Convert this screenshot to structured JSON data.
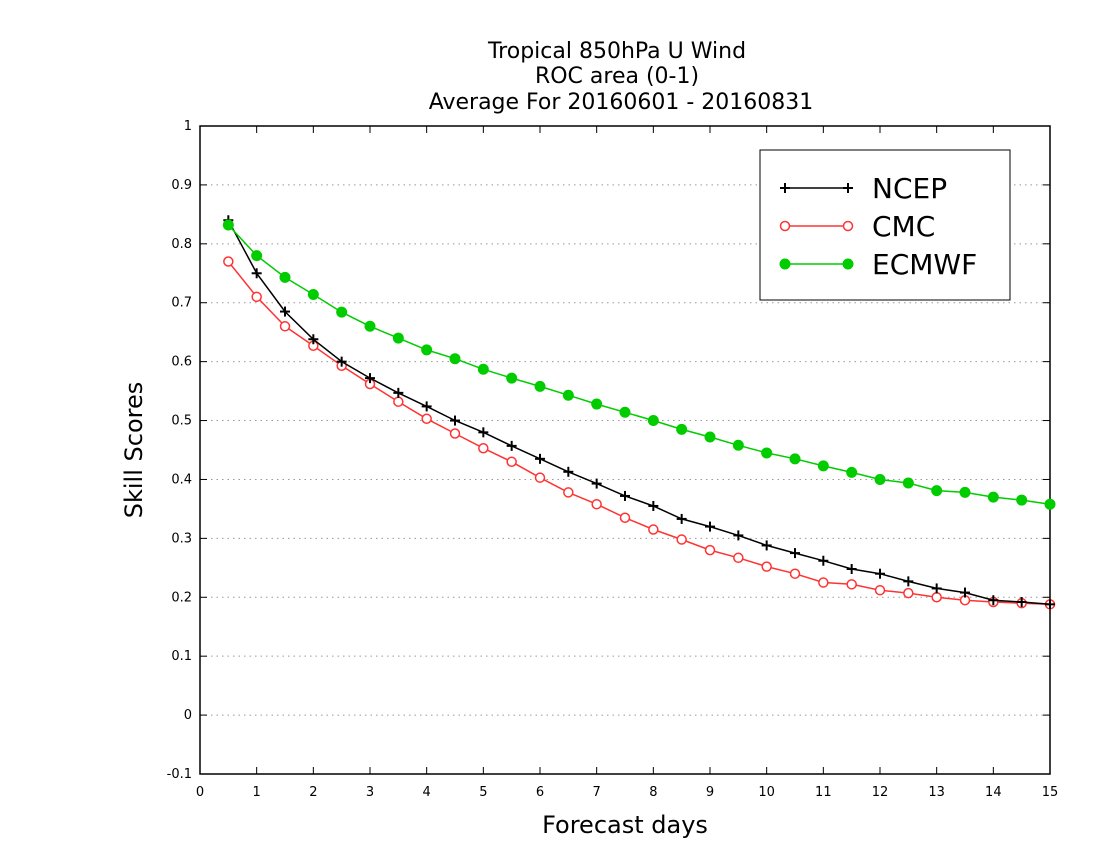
{
  "chart_data": {
    "type": "line",
    "title_lines": [
      "Tropical 850hPa U Wind",
      "ROC area (0-1)",
      "Average For 20160601 - 20160831"
    ],
    "xlabel": "Forecast days",
    "ylabel": "Skill Scores",
    "xlim": [
      0,
      15
    ],
    "ylim": [
      -0.1,
      1
    ],
    "xticks": [
      0,
      1,
      2,
      3,
      4,
      5,
      6,
      7,
      8,
      9,
      10,
      11,
      12,
      13,
      14,
      15
    ],
    "yticks": [
      -0.1,
      0,
      0.1,
      0.2,
      0.3,
      0.4,
      0.5,
      0.6,
      0.7,
      0.8,
      0.9,
      1
    ],
    "ytick_labels": [
      "-0.1",
      "0",
      "0.1",
      "0.2",
      "0.3",
      "0.4",
      "0.5",
      "0.6",
      "0.7",
      "0.8",
      "0.9",
      "1"
    ],
    "grid": "horizontal dotted",
    "legend_position": "top-right",
    "x": [
      0.5,
      1,
      1.5,
      2,
      2.5,
      3,
      3.5,
      4,
      4.5,
      5,
      5.5,
      6,
      6.5,
      7,
      7.5,
      8,
      8.5,
      9,
      9.5,
      10,
      10.5,
      11,
      11.5,
      12,
      12.5,
      13,
      13.5,
      14,
      14.5,
      15
    ],
    "series": [
      {
        "name": "NCEP",
        "color": "#000000",
        "marker": "plus",
        "values": [
          0.84,
          0.75,
          0.685,
          0.638,
          0.6,
          0.572,
          0.547,
          0.524,
          0.5,
          0.48,
          0.457,
          0.435,
          0.413,
          0.393,
          0.372,
          0.355,
          0.333,
          0.32,
          0.305,
          0.288,
          0.275,
          0.262,
          0.248,
          0.24,
          0.227,
          0.215,
          0.208,
          0.195,
          0.192,
          0.188
        ]
      },
      {
        "name": "CMC",
        "color": "#ff3333",
        "marker": "open-circle",
        "values": [
          0.77,
          0.71,
          0.66,
          0.627,
          0.593,
          0.562,
          0.532,
          0.503,
          0.478,
          0.453,
          0.43,
          0.403,
          0.378,
          0.358,
          0.335,
          0.315,
          0.298,
          0.28,
          0.267,
          0.252,
          0.24,
          0.225,
          0.222,
          0.212,
          0.207,
          0.2,
          0.195,
          0.192,
          0.19,
          0.188
        ]
      },
      {
        "name": "ECMWF",
        "color": "#00cc00",
        "marker": "filled-circle",
        "values": [
          0.832,
          0.78,
          0.743,
          0.714,
          0.684,
          0.66,
          0.64,
          0.62,
          0.605,
          0.587,
          0.572,
          0.558,
          0.543,
          0.528,
          0.514,
          0.5,
          0.485,
          0.472,
          0.458,
          0.445,
          0.435,
          0.423,
          0.412,
          0.4,
          0.394,
          0.381,
          0.378,
          0.37,
          0.365,
          0.358
        ]
      }
    ]
  }
}
